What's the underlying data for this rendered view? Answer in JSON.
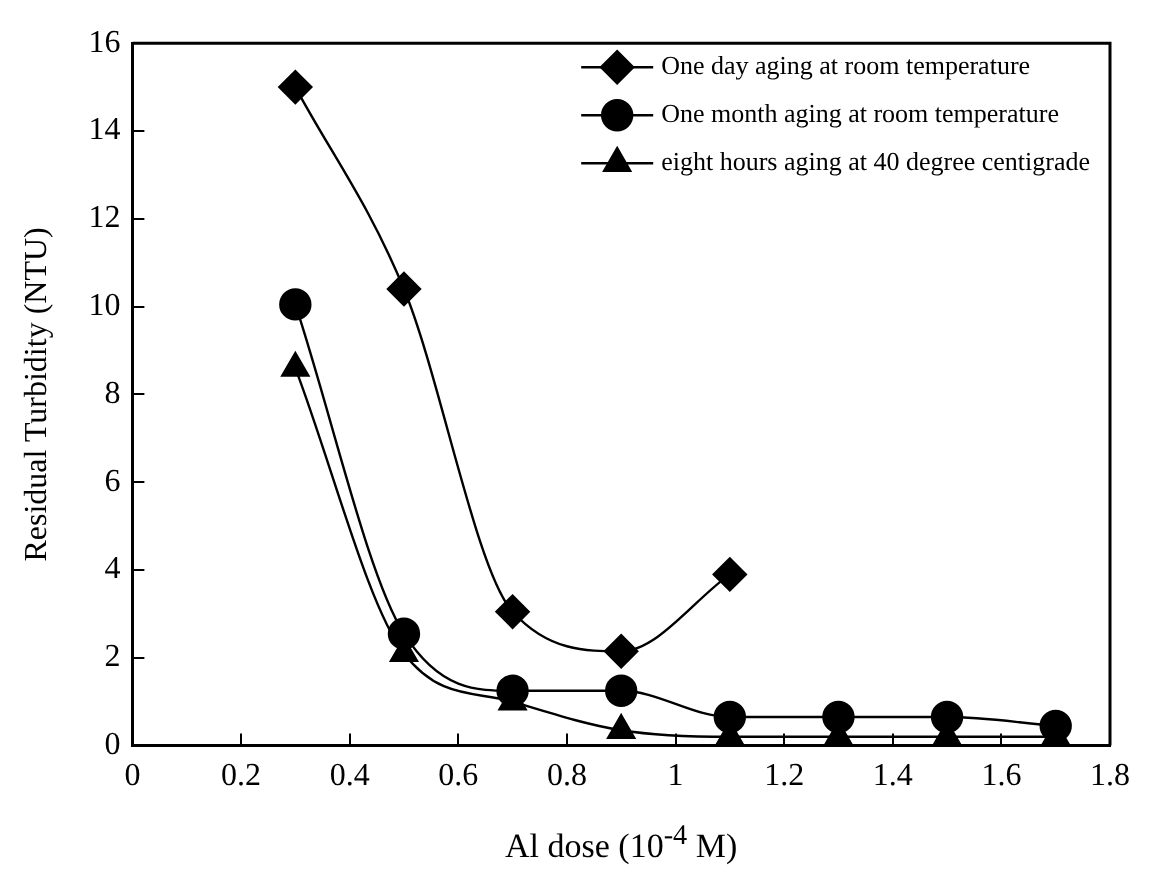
{
  "chart_data": {
    "type": "line",
    "xlabel": "Al dose (10$^{-4}$ M)",
    "ylabel": "Residual Turbidity (NTU)",
    "xlim": [
      0,
      1.8
    ],
    "xticks": [
      0,
      0.2,
      0.4,
      0.6,
      0.8,
      1,
      1.2,
      1.4,
      1.6,
      1.8
    ],
    "ylim": [
      0,
      16
    ],
    "yticks": [
      0,
      2,
      4,
      6,
      8,
      10,
      12,
      14,
      16
    ],
    "grid": false,
    "legend": "top right",
    "line_style": "solid",
    "series": [
      {
        "name": "One day aging at room temperature",
        "color": "#000000",
        "marker": "diamond",
        "x": [
          0.3,
          0.5,
          0.7,
          0.9,
          1.1
        ],
        "values": [
          15,
          10.4,
          3.05,
          2.15,
          3.9
        ]
      },
      {
        "name": "One month aging at room temperature",
        "color": "#000000",
        "marker": "circle",
        "x": [
          0.3,
          0.5,
          0.7,
          0.9,
          1.1,
          1.3,
          1.5,
          1.7
        ],
        "values": [
          10.05,
          2.55,
          1.25,
          1.25,
          0.65,
          0.65,
          0.65,
          0.45
        ]
      },
      {
        "name": "eight hours aging at 40 degree centigrade",
        "color": "#000000",
        "marker": "triangle",
        "x": [
          0.3,
          0.5,
          0.7,
          0.9,
          1.1,
          1.3,
          1.5,
          1.7
        ],
        "values": [
          8.6,
          2.1,
          1.0,
          0.35,
          0.2,
          0.2,
          0.2,
          0.2
        ]
      }
    ]
  }
}
